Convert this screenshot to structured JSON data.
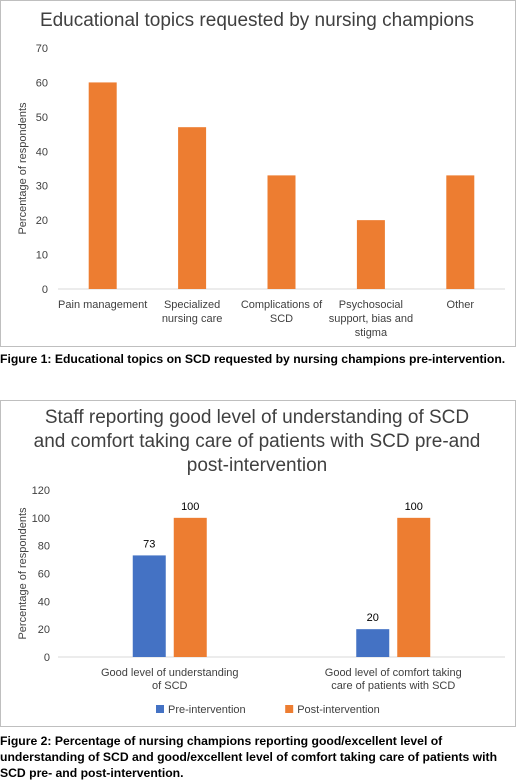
{
  "figures": [
    {
      "title": "Educational topics requested by nursing champions",
      "caption": "Figure 1: Educational topics on SCD requested by nursing champions pre-intervention."
    },
    {
      "title": "Staff reporting good level of understanding of SCD and comfort taking care of patients with SCD pre-and post-intervention",
      "title_lines": [
        "Staff reporting good level of understanding of SCD",
        "and comfort taking care of patients with SCD pre-and",
        "post-intervention"
      ],
      "caption": "Figure 2: Percentage of nursing champions reporting good/excellent level of understanding of SCD and good/excellent level of comfort taking care of patients with SCD pre- and post-intervention."
    }
  ],
  "chart_data": [
    {
      "type": "bar",
      "title": "Educational topics requested by nursing champions",
      "ylabel": "Percentage of respondents",
      "xlabel": "",
      "ylim": [
        0,
        70
      ],
      "yticks": [
        0,
        10,
        20,
        30,
        40,
        50,
        60,
        70
      ],
      "categories": [
        [
          "Pain management"
        ],
        [
          "Specialized",
          "nursing care"
        ],
        [
          "Complications of",
          "SCD"
        ],
        [
          "Psychosocial",
          "support, bias and",
          "stigma"
        ],
        [
          "Other"
        ]
      ],
      "values": [
        60,
        47,
        33,
        20,
        33
      ],
      "color": "#ED7D31",
      "grid": false
    },
    {
      "type": "bar",
      "title": "Staff reporting good level of understanding of SCD and comfort taking care of patients with SCD pre-and post-intervention",
      "ylabel": "Percentage of respondents",
      "xlabel": "",
      "ylim": [
        0,
        120
      ],
      "yticks": [
        0,
        20,
        40,
        60,
        80,
        100,
        120
      ],
      "categories": [
        [
          "Good level of understanding",
          "of SCD"
        ],
        [
          "Good level of comfort taking",
          "care of patients with SCD"
        ]
      ],
      "series": [
        {
          "name": "Pre-intervention",
          "values": [
            73,
            20
          ],
          "color": "#4472C4"
        },
        {
          "name": "Post-intervention",
          "values": [
            100,
            100
          ],
          "color": "#ED7D31"
        }
      ],
      "legend": "bottom",
      "grid": false
    }
  ]
}
